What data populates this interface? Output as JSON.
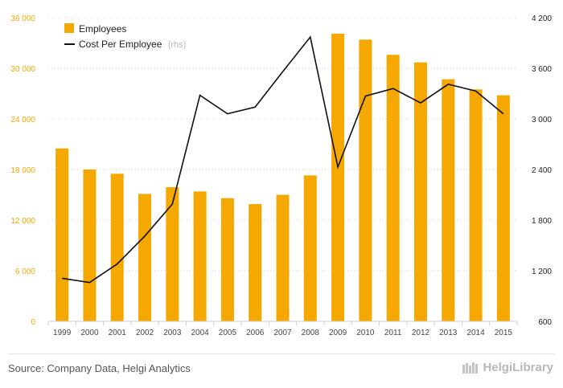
{
  "chart_data": {
    "type": "bar",
    "categories": [
      "1999",
      "2000",
      "2001",
      "2002",
      "2003",
      "2004",
      "2005",
      "2006",
      "2007",
      "2008",
      "2009",
      "2010",
      "2011",
      "2012",
      "2013",
      "2014",
      "2015"
    ],
    "series": [
      {
        "name": "Employees",
        "type": "bar",
        "axis": "left",
        "color": "#f5a800",
        "values": [
          20500,
          18000,
          17500,
          15100,
          15900,
          15400,
          14600,
          13900,
          15000,
          17300,
          34100,
          33400,
          31600,
          30700,
          28700,
          27500,
          26800
        ]
      },
      {
        "name": "Cost Per Employee",
        "type": "line",
        "axis": "right",
        "color": "#111111",
        "values": [
          1110,
          1060,
          1280,
          1610,
          1990,
          3280,
          3060,
          3140,
          3560,
          3970,
          2430,
          3270,
          3360,
          3190,
          3410,
          3330,
          3060
        ]
      }
    ],
    "left_axis": {
      "ticks": [
        "0",
        "6 000",
        "12 000",
        "18 000",
        "24 000",
        "30 000",
        "36 000"
      ],
      "min": 0,
      "max": 36000
    },
    "right_axis": {
      "ticks": [
        "600",
        "1 200",
        "1 800",
        "2 400",
        "3 000",
        "3 600",
        "4 200"
      ],
      "min": 600,
      "max": 4200
    },
    "legend": {
      "employees_label": "Employees",
      "cost_label": "Cost Per Employee",
      "cost_suffix": "(rhs)",
      "placement": "top-left"
    },
    "grid": "horizontal-dotted"
  },
  "footer": {
    "source": "Source: Company Data, Helgi Analytics",
    "logo_text": "HelgiLibrary"
  }
}
